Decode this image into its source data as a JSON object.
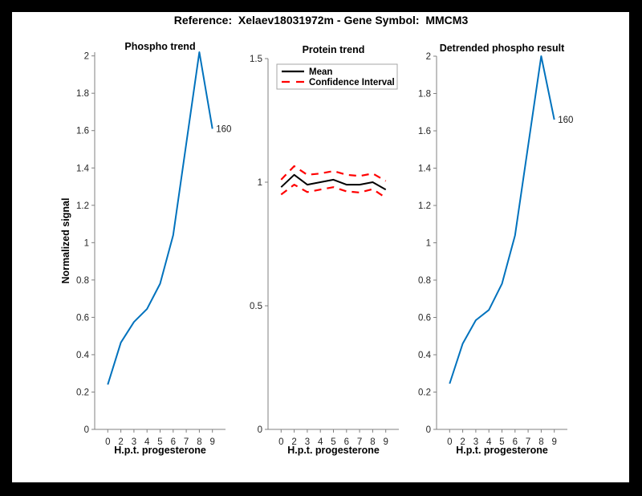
{
  "figure": {
    "title": "Reference:  Xelaev18031972m - Gene Symbol:  MMCM3",
    "canvas_color": "#FFFFFF",
    "border_color": "#000000"
  },
  "colors": {
    "phospho_blue": "#0072BD",
    "mean_black": "#000000",
    "ci_red": "#FF0000",
    "axis_line": "#808080",
    "tick_label": "#262626",
    "legend_border": "#A6A6A6"
  },
  "chart_data": [
    {
      "type": "line",
      "title": "Phospho trend",
      "xlabel": "H.p.t. progesterone",
      "ylabel": "Normalized signal",
      "x": [
        0,
        2,
        3,
        4,
        5,
        6,
        7,
        8,
        9
      ],
      "x_tick_labels": [
        "0",
        "2",
        "3",
        "4",
        "5",
        "6",
        "7",
        "8",
        "9"
      ],
      "x_spacing": "categorical",
      "ylim": [
        0,
        2.02
      ],
      "yticks": [
        0,
        0.2,
        0.4,
        0.6,
        0.8,
        1,
        1.2,
        1.4,
        1.6,
        1.8,
        2
      ],
      "ytick_labels": [
        "0",
        "0.2",
        "0.4",
        "0.6",
        "0.8",
        "1",
        "1.2",
        "1.4",
        "1.6",
        "1.8",
        "2"
      ],
      "grid": false,
      "series": [
        {
          "name": "Phospho signal",
          "color": "#0072BD",
          "style": "solid",
          "width": 2,
          "values": [
            0.24,
            0.465,
            0.575,
            0.645,
            0.78,
            1.04,
            1.53,
            2.02,
            1.61
          ]
        }
      ],
      "annotation": {
        "text": "160",
        "at": "last-point"
      }
    },
    {
      "type": "line",
      "title": "Protein trend",
      "xlabel": "H.p.t. progesterone",
      "ylabel": "",
      "x": [
        0,
        2,
        3,
        4,
        5,
        6,
        7,
        8,
        9
      ],
      "x_tick_labels": [
        "0",
        "2",
        "3",
        "4",
        "5",
        "6",
        "7",
        "8",
        "9"
      ],
      "x_spacing": "categorical",
      "ylim": [
        0,
        1.5
      ],
      "yticks": [
        0,
        0.5,
        1,
        1.5
      ],
      "ytick_labels": [
        "0",
        "0.5",
        "1",
        "1.5"
      ],
      "grid": false,
      "legend": {
        "position": "northwest",
        "entries": [
          {
            "label": "Mean",
            "color": "#000000",
            "style": "solid"
          },
          {
            "label": "Confidence Interval",
            "color": "#FF0000",
            "style": "dashed"
          }
        ]
      },
      "series": [
        {
          "name": "Mean",
          "color": "#000000",
          "style": "solid",
          "width": 2,
          "values": [
            0.98,
            1.03,
            0.99,
            1.0,
            1.01,
            0.99,
            0.99,
            1.0,
            0.97
          ]
        },
        {
          "name": "CI upper",
          "color": "#FF0000",
          "style": "dashed",
          "width": 2.2,
          "values": [
            1.01,
            1.065,
            1.03,
            1.035,
            1.045,
            1.03,
            1.025,
            1.035,
            1.005
          ]
        },
        {
          "name": "CI lower",
          "color": "#FF0000",
          "style": "dashed",
          "width": 2.2,
          "values": [
            0.95,
            0.99,
            0.96,
            0.97,
            0.98,
            0.963,
            0.958,
            0.972,
            0.937
          ]
        }
      ]
    },
    {
      "type": "line",
      "title": "Detrended phospho result",
      "xlabel": "H.p.t. progesterone",
      "ylabel": "",
      "x": [
        0,
        2,
        3,
        4,
        5,
        6,
        7,
        8,
        9
      ],
      "x_tick_labels": [
        "0",
        "2",
        "3",
        "4",
        "5",
        "6",
        "7",
        "8",
        "9"
      ],
      "x_spacing": "categorical",
      "ylim": [
        0,
        2.0
      ],
      "yticks": [
        0,
        0.2,
        0.4,
        0.6,
        0.8,
        1,
        1.2,
        1.4,
        1.6,
        1.8,
        2
      ],
      "ytick_labels": [
        "0",
        "0.2",
        "0.4",
        "0.6",
        "0.8",
        "1",
        "1.2",
        "1.4",
        "1.6",
        "1.8",
        "2"
      ],
      "grid": false,
      "series": [
        {
          "name": "Detrended phospho",
          "color": "#0072BD",
          "style": "solid",
          "width": 2,
          "values": [
            0.245,
            0.46,
            0.585,
            0.64,
            0.78,
            1.04,
            1.52,
            2.0,
            1.66
          ]
        }
      ],
      "annotation": {
        "text": "160",
        "at": "last-point"
      }
    }
  ]
}
